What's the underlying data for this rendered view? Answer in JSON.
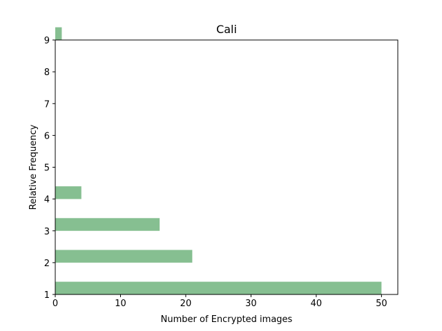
{
  "chart_data": {
    "type": "bar",
    "orientation": "horizontal",
    "title": "Cali",
    "xlabel": "Number of Encrypted images",
    "ylabel": "Relative Frequency",
    "bars": [
      {
        "y": 1,
        "value": 50
      },
      {
        "y": 2,
        "value": 21
      },
      {
        "y": 3,
        "value": 16
      },
      {
        "y": 4,
        "value": 4
      },
      {
        "y": 9,
        "value": 1
      }
    ],
    "xlim": [
      0,
      52.5
    ],
    "ylim": [
      1,
      9
    ],
    "xticks": [
      "0",
      "10",
      "20",
      "30",
      "40",
      "50"
    ],
    "yticks": [
      "1",
      "2",
      "3",
      "4",
      "5",
      "6",
      "7",
      "8",
      "9"
    ],
    "grid": false,
    "bar_color": "#86bf91"
  }
}
